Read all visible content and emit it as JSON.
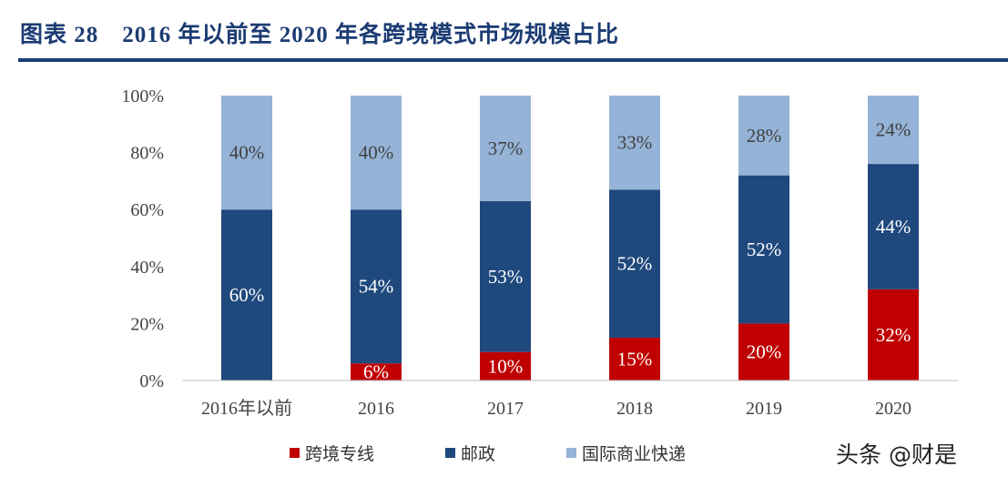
{
  "title": "图表 28　2016 年以前至 2020 年各跨境模式市场规模占比",
  "watermark": "头条 @财是",
  "chart_data": {
    "type": "bar",
    "stacked": true,
    "percent": true,
    "categories": [
      "2016年以前",
      "2016",
      "2017",
      "2018",
      "2019",
      "2020"
    ],
    "series": [
      {
        "name": "跨境专线",
        "color": "#C00000",
        "values": [
          0,
          6,
          10,
          15,
          20,
          32
        ]
      },
      {
        "name": "邮政",
        "color": "#1F497D",
        "values": [
          60,
          54,
          53,
          52,
          52,
          44
        ]
      },
      {
        "name": "国际商业快递",
        "color": "#95B3D7",
        "values": [
          40,
          40,
          37,
          33,
          28,
          24
        ]
      }
    ],
    "ylim": [
      0,
      100
    ],
    "yticks": [
      "0%",
      "20%",
      "40%",
      "60%",
      "80%",
      "100%"
    ],
    "grid": false,
    "legend": "bottom",
    "data_labels": true
  }
}
